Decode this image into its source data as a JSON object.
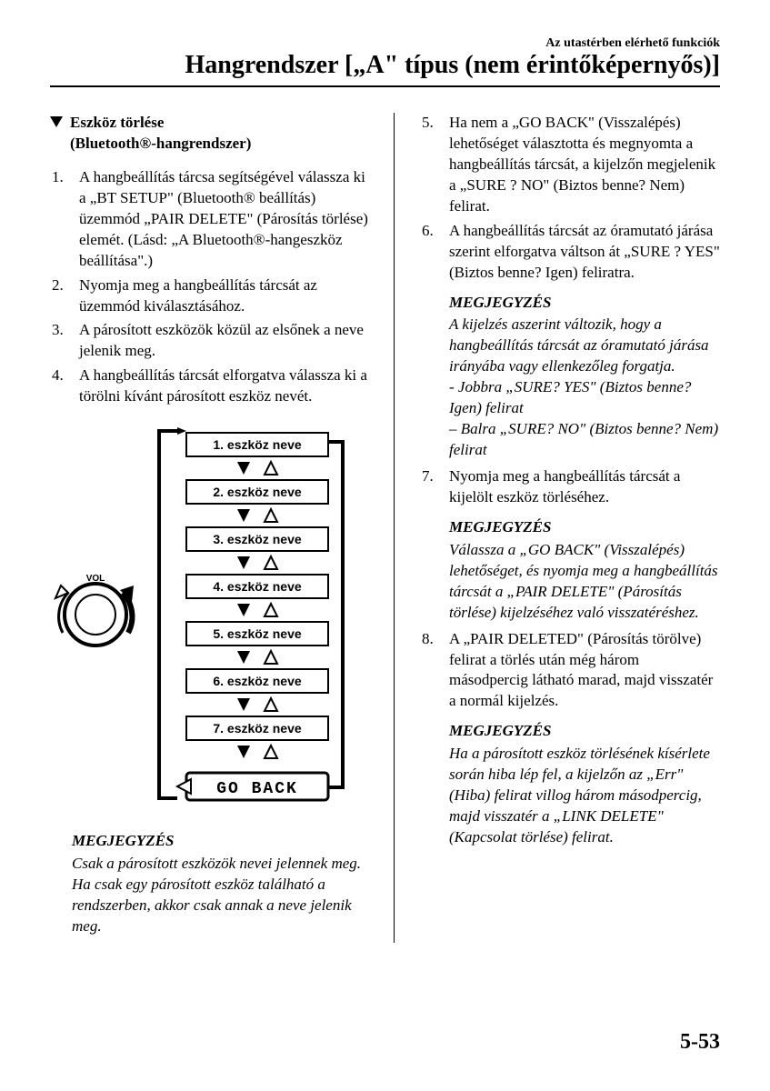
{
  "header": {
    "subtitle": "Az utastérben elérhető funkciók",
    "title": "Hangrendszer [„A\" típus (nem érintőképernyős)]"
  },
  "left": {
    "section_title_line1": "Eszköz törlése",
    "section_title_line2": "(Bluetooth®-hangrendszer)",
    "steps": [
      "A hangbeállítás tárcsa segítségével válassza ki a „BT SETUP\" (Bluetooth® beállítás) üzemmód „PAIR DELETE\" (Párosítás törlése) elemét. (Lásd: „A Bluetooth®-hangeszköz beállítása\".)",
      "Nyomja meg a hangbeállítás tárcsát az üzemmód kiválasztásához.",
      "A párosított eszközök közül az elsőnek a neve jelenik meg.",
      "A hangbeállítás tárcsát elforgatva válassza ki a törölni kívánt párosított eszköz nevét."
    ],
    "diagram": {
      "device_labels": [
        "1. eszköz neve",
        "2. eszköz neve",
        "3. eszköz neve",
        "4. eszköz neve",
        "5. eszköz neve",
        "6. eszköz neve",
        "7. eszköz neve"
      ],
      "go_back": "GO BACK",
      "vol_label": "VOL",
      "box_stroke": "#000000",
      "box_fill": "#ffffff",
      "arrow_fill": "#000000",
      "arrow_outline": "#000000"
    },
    "note_title": "MEGJEGYZÉS",
    "note_body": "Csak a párosított eszközök nevei jelennek meg. Ha csak egy párosított eszköz található a rendszerben, akkor csak annak a neve jelenik meg."
  },
  "right": {
    "steps_5_8": [
      "Ha nem a „GO BACK\" (Visszalépés) lehetőséget választotta és megnyomta a hangbeállítás tárcsát, a kijelzőn megjelenik a „SURE ? NO\" (Biztos benne? Nem) felirat.",
      "A hangbeállítás tárcsát az óramutató járása szerint elforgatva váltson át „SURE ? YES\" (Biztos benne? Igen) feliratra."
    ],
    "note1_title": "MEGJEGYZÉS",
    "note1_body": "A kijelzés aszerint változik, hogy a hangbeállítás tárcsát az óramutató járása irányába vagy ellenkezőleg forgatja.\n- Jobbra „SURE? YES\" (Biztos benne? Igen) felirat\n– Balra „SURE? NO\" (Biztos benne? Nem) felirat",
    "step7": "Nyomja meg a hangbeállítás tárcsát a kijelölt eszköz törléséhez.",
    "note2_title": "MEGJEGYZÉS",
    "note2_body": "Válassza a „GO BACK\" (Visszalépés) lehetőséget, és nyomja meg a hangbeállítás tárcsát a „PAIR DELETE\" (Párosítás törlése) kijelzéséhez való visszatéréshez.",
    "step8": "A „PAIR DELETED\" (Párosítás törölve) felirat a törlés után még három másodpercig látható marad, majd visszatér a normál kijelzés.",
    "note3_title": "MEGJEGYZÉS",
    "note3_body": "Ha a párosított eszköz törlésének kísérlete során hiba lép fel, a kijelzőn az „Err\" (Hiba) felirat villog három másodpercig, majd visszatér a „LINK DELETE\" (Kapcsolat törlése) felirat."
  },
  "page_number": "5-53"
}
